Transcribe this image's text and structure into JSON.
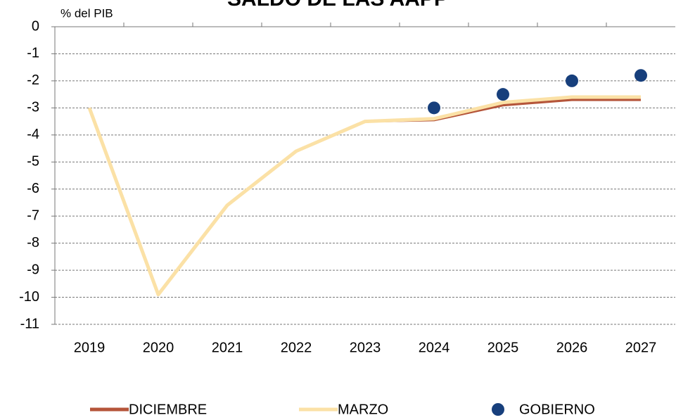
{
  "chart_data": {
    "type": "line",
    "title": "SALDO DE LAS AAPP",
    "y_label": "% del PIB",
    "categories": [
      "2019",
      "2020",
      "2021",
      "2022",
      "2023",
      "2024",
      "2025",
      "2026",
      "2027"
    ],
    "series": [
      {
        "name": "DICIEMBRE",
        "color": "#b5553a",
        "type": "line",
        "values": [
          -3.0,
          -9.9,
          -6.6,
          -4.6,
          -3.5,
          -3.45,
          -2.9,
          -2.7,
          -2.7
        ]
      },
      {
        "name": "MARZO",
        "color": "#fbe1a6",
        "type": "line",
        "values": [
          -3.0,
          -9.9,
          -6.6,
          -4.6,
          -3.5,
          -3.4,
          -2.8,
          -2.6,
          -2.6
        ]
      },
      {
        "name": "GOBIERNO",
        "color": "#173f7c",
        "type": "scatter",
        "values": [
          null,
          null,
          null,
          null,
          null,
          -3.0,
          -2.5,
          -2.0,
          -1.8
        ]
      }
    ],
    "ylim": [
      -11,
      0
    ],
    "yticks": [
      0,
      -1,
      -2,
      -3,
      -4,
      -5,
      -6,
      -7,
      -8,
      -9,
      -10,
      -11
    ],
    "grid": true
  }
}
